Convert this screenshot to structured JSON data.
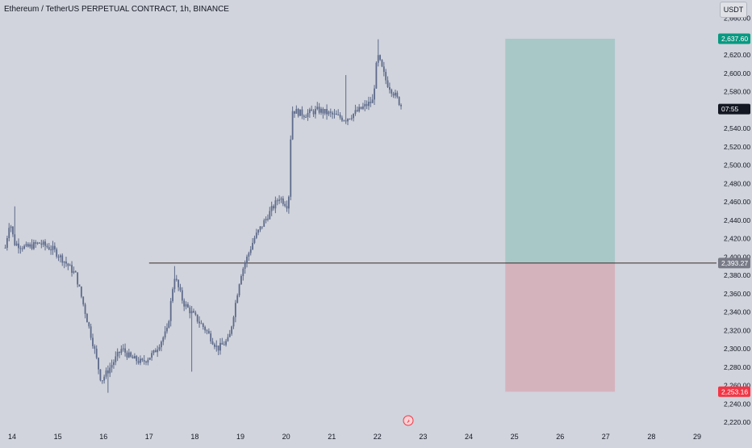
{
  "header": {
    "title": "Ethereum / TetherUS PERPETUAL CONTRACT, 1h, BINANCE"
  },
  "toolbar": {
    "currency": "USDT"
  },
  "price_axis": {
    "ticks": [
      "2,660.00",
      "2,620.00",
      "2,600.00",
      "2,580.00",
      "2,560.00",
      "2,540.00",
      "2,520.00",
      "2,500.00",
      "2,480.00",
      "2,460.00",
      "2,440.00",
      "2,420.00",
      "2,400.00",
      "2,380.00",
      "2,360.00",
      "2,340.00",
      "2,320.00",
      "2,300.00",
      "2,280.00",
      "2,260.00",
      "2,240.00",
      "2,220.00"
    ],
    "labels": {
      "target": "2,637.60",
      "countdown": "07:55",
      "entry": "2,393.27",
      "stop": "2,253.16"
    }
  },
  "time_axis": {
    "ticks": [
      "14",
      "15",
      "16",
      "17",
      "18",
      "19",
      "20",
      "21",
      "22",
      "23",
      "24",
      "25",
      "26",
      "27",
      "28",
      "29"
    ]
  },
  "colors": {
    "background": "#d1d4dc",
    "candle": "#5d6a8a",
    "profit_zone": "#a8c8c8",
    "loss_zone": "#d5b3bd",
    "target_label": "#089981",
    "stop_label": "#f23645",
    "entry_label": "#787b86",
    "countdown_label": "#131722",
    "entry_line": "#3a2a2a"
  },
  "chart_data": {
    "type": "candlestick",
    "title": "Ethereum / TetherUS PERPETUAL CONTRACT, 1h, BINANCE",
    "ylim": [
      2210,
      2675
    ],
    "x_categories": [
      "14",
      "15",
      "16",
      "17",
      "18",
      "19",
      "20",
      "21",
      "22",
      "23",
      "24",
      "25",
      "26",
      "27",
      "28",
      "29"
    ],
    "price_path": [
      {
        "day": 13.85,
        "price": 2410
      },
      {
        "day": 13.95,
        "price": 2440
      },
      {
        "day": 14.05,
        "price": 2415
      },
      {
        "day": 14.3,
        "price": 2410
      },
      {
        "day": 14.6,
        "price": 2415
      },
      {
        "day": 14.9,
        "price": 2408
      },
      {
        "day": 15.15,
        "price": 2395
      },
      {
        "day": 15.4,
        "price": 2380
      },
      {
        "day": 15.6,
        "price": 2340
      },
      {
        "day": 15.8,
        "price": 2300
      },
      {
        "day": 15.95,
        "price": 2265
      },
      {
        "day": 16.15,
        "price": 2280
      },
      {
        "day": 16.4,
        "price": 2300
      },
      {
        "day": 16.6,
        "price": 2290
      },
      {
        "day": 16.85,
        "price": 2285
      },
      {
        "day": 17.1,
        "price": 2295
      },
      {
        "day": 17.4,
        "price": 2320
      },
      {
        "day": 17.55,
        "price": 2380
      },
      {
        "day": 17.75,
        "price": 2350
      },
      {
        "day": 18.0,
        "price": 2335
      },
      {
        "day": 18.25,
        "price": 2320
      },
      {
        "day": 18.5,
        "price": 2300
      },
      {
        "day": 18.75,
        "price": 2310
      },
      {
        "day": 19.0,
        "price": 2380
      },
      {
        "day": 19.3,
        "price": 2420
      },
      {
        "day": 19.6,
        "price": 2445
      },
      {
        "day": 19.85,
        "price": 2465
      },
      {
        "day": 20.05,
        "price": 2455
      },
      {
        "day": 20.12,
        "price": 2560
      },
      {
        "day": 20.4,
        "price": 2555
      },
      {
        "day": 20.7,
        "price": 2560
      },
      {
        "day": 21.0,
        "price": 2555
      },
      {
        "day": 21.3,
        "price": 2550
      },
      {
        "day": 21.6,
        "price": 2560
      },
      {
        "day": 21.9,
        "price": 2570
      },
      {
        "day": 22.0,
        "price": 2620
      },
      {
        "day": 22.2,
        "price": 2590
      },
      {
        "day": 22.4,
        "price": 2575
      },
      {
        "day": 22.55,
        "price": 2562
      }
    ],
    "lows": [
      {
        "day": 15.48,
        "price": 2375
      },
      {
        "day": 16.1,
        "price": 2252
      },
      {
        "day": 17.95,
        "price": 2275
      }
    ],
    "highs": [
      {
        "day": 14.05,
        "price": 2455
      },
      {
        "day": 17.55,
        "price": 2390
      },
      {
        "day": 21.3,
        "price": 2598
      },
      {
        "day": 22.0,
        "price": 2637
      }
    ],
    "position": {
      "type": "long",
      "entry": 2393.27,
      "target": 2637.6,
      "stop": 2253.16,
      "start_day": 24.8,
      "end_day": 27.2
    },
    "horizontal_line": {
      "price": 2393.27,
      "start_day": 17.0
    }
  }
}
